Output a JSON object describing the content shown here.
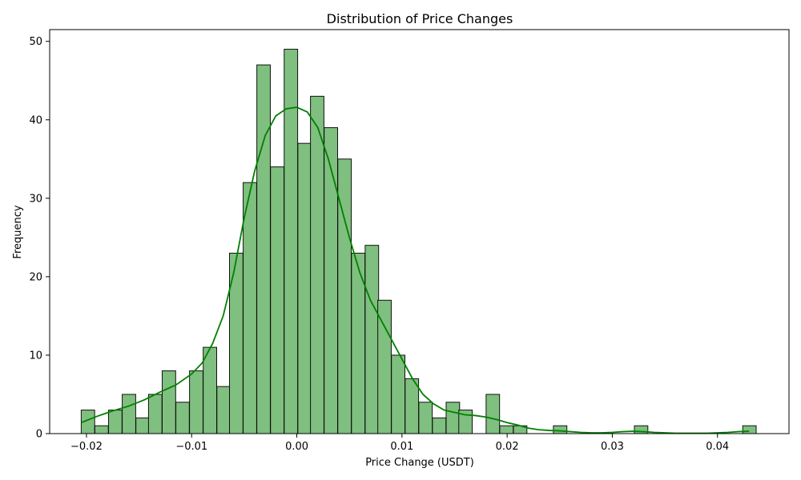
{
  "chart_data": {
    "type": "bar",
    "subtype": "histogram",
    "title": "Distribution of Price Changes",
    "xlabel": "Price Change (USDT)",
    "ylabel": "Frequency",
    "xlim": [
      -0.0235,
      0.0468
    ],
    "ylim": [
      0,
      51.5
    ],
    "bin_width": 0.00128,
    "bins": [
      {
        "x0": -0.0205,
        "count": 3
      },
      {
        "x0": -0.0192,
        "count": 1
      },
      {
        "x0": -0.0179,
        "count": 3
      },
      {
        "x0": -0.0166,
        "count": 5
      },
      {
        "x0": -0.0153,
        "count": 2
      },
      {
        "x0": -0.0141,
        "count": 5
      },
      {
        "x0": -0.0128,
        "count": 8
      },
      {
        "x0": -0.0115,
        "count": 4
      },
      {
        "x0": -0.0102,
        "count": 8
      },
      {
        "x0": -0.0089,
        "count": 11
      },
      {
        "x0": -0.0076,
        "count": 6
      },
      {
        "x0": -0.0064,
        "count": 23
      },
      {
        "x0": -0.0051,
        "count": 32
      },
      {
        "x0": -0.0038,
        "count": 47
      },
      {
        "x0": -0.0025,
        "count": 34
      },
      {
        "x0": -0.0012,
        "count": 49
      },
      {
        "x0": 0.0001,
        "count": 37
      },
      {
        "x0": 0.0013,
        "count": 43
      },
      {
        "x0": 0.0026,
        "count": 39
      },
      {
        "x0": 0.0039,
        "count": 35
      },
      {
        "x0": 0.0052,
        "count": 23
      },
      {
        "x0": 0.0065,
        "count": 24
      },
      {
        "x0": 0.0077,
        "count": 17
      },
      {
        "x0": 0.009,
        "count": 10
      },
      {
        "x0": 0.0103,
        "count": 7
      },
      {
        "x0": 0.0116,
        "count": 4
      },
      {
        "x0": 0.0129,
        "count": 2
      },
      {
        "x0": 0.0142,
        "count": 4
      },
      {
        "x0": 0.0154,
        "count": 3
      },
      {
        "x0": 0.0167,
        "count": 0
      },
      {
        "x0": 0.018,
        "count": 5
      },
      {
        "x0": 0.0193,
        "count": 1
      },
      {
        "x0": 0.0206,
        "count": 1
      },
      {
        "x0": 0.0219,
        "count": 0
      },
      {
        "x0": 0.0232,
        "count": 0
      },
      {
        "x0": 0.0244,
        "count": 1
      },
      {
        "x0": 0.0257,
        "count": 0
      },
      {
        "x0": 0.027,
        "count": 0
      },
      {
        "x0": 0.0283,
        "count": 0
      },
      {
        "x0": 0.0296,
        "count": 0
      },
      {
        "x0": 0.0309,
        "count": 0
      },
      {
        "x0": 0.0321,
        "count": 1
      },
      {
        "x0": 0.0334,
        "count": 0
      },
      {
        "x0": 0.0347,
        "count": 0
      },
      {
        "x0": 0.036,
        "count": 0
      },
      {
        "x0": 0.0373,
        "count": 0
      },
      {
        "x0": 0.0386,
        "count": 0
      },
      {
        "x0": 0.0399,
        "count": 0
      },
      {
        "x0": 0.0411,
        "count": 0
      },
      {
        "x0": 0.0424,
        "count": 1
      }
    ],
    "kde": [
      [
        -0.0205,
        1.4
      ],
      [
        -0.019,
        2.2
      ],
      [
        -0.0175,
        2.9
      ],
      [
        -0.016,
        3.5
      ],
      [
        -0.0145,
        4.3
      ],
      [
        -0.013,
        5.3
      ],
      [
        -0.0115,
        6.2
      ],
      [
        -0.01,
        7.6
      ],
      [
        -0.009,
        9.0
      ],
      [
        -0.008,
        11.5
      ],
      [
        -0.007,
        15.0
      ],
      [
        -0.006,
        20.5
      ],
      [
        -0.005,
        27.5
      ],
      [
        -0.004,
        33.5
      ],
      [
        -0.003,
        38.0
      ],
      [
        -0.002,
        40.5
      ],
      [
        -0.001,
        41.4
      ],
      [
        0.0,
        41.6
      ],
      [
        0.001,
        41.0
      ],
      [
        0.002,
        39.0
      ],
      [
        0.003,
        35.0
      ],
      [
        0.004,
        30.0
      ],
      [
        0.005,
        25.0
      ],
      [
        0.006,
        20.5
      ],
      [
        0.007,
        17.0
      ],
      [
        0.008,
        14.5
      ],
      [
        0.009,
        12.0
      ],
      [
        0.01,
        9.5
      ],
      [
        0.011,
        7.0
      ],
      [
        0.012,
        5.0
      ],
      [
        0.013,
        3.8
      ],
      [
        0.014,
        3.0
      ],
      [
        0.015,
        2.7
      ],
      [
        0.016,
        2.4
      ],
      [
        0.017,
        2.3
      ],
      [
        0.018,
        2.1
      ],
      [
        0.019,
        1.8
      ],
      [
        0.02,
        1.4
      ],
      [
        0.021,
        1.1
      ],
      [
        0.022,
        0.7
      ],
      [
        0.023,
        0.5
      ],
      [
        0.024,
        0.4
      ],
      [
        0.025,
        0.35
      ],
      [
        0.026,
        0.25
      ],
      [
        0.027,
        0.15
      ],
      [
        0.028,
        0.1
      ],
      [
        0.029,
        0.1
      ],
      [
        0.03,
        0.15
      ],
      [
        0.031,
        0.25
      ],
      [
        0.032,
        0.3
      ],
      [
        0.033,
        0.25
      ],
      [
        0.034,
        0.15
      ],
      [
        0.035,
        0.1
      ],
      [
        0.036,
        0.05
      ],
      [
        0.037,
        0.05
      ],
      [
        0.038,
        0.05
      ],
      [
        0.039,
        0.05
      ],
      [
        0.04,
        0.1
      ],
      [
        0.041,
        0.15
      ],
      [
        0.042,
        0.25
      ],
      [
        0.043,
        0.3
      ]
    ],
    "xticks": [
      -0.02,
      -0.01,
      0.0,
      0.01,
      0.02,
      0.03,
      0.04
    ],
    "xtick_labels": [
      "−0.02",
      "−0.01",
      "0.00",
      "0.01",
      "0.02",
      "0.03",
      "0.04"
    ],
    "yticks": [
      0,
      10,
      20,
      30,
      40,
      50
    ],
    "ytick_labels": [
      "0",
      "10",
      "20",
      "30",
      "40",
      "50"
    ],
    "grid": false,
    "legend": "none",
    "colors": {
      "bar_fill": "#7fbf7f",
      "bar_edge": "#111111",
      "kde_line": "#008000",
      "axis": "#000000"
    }
  }
}
